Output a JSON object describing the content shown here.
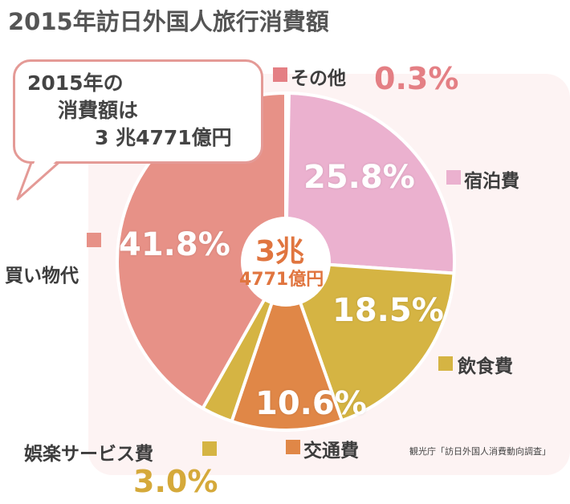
{
  "title": "2015年訪日外国人旅行消費額",
  "callout": {
    "line1": "2015年の",
    "line2": "消費額は",
    "line3": "3 兆4771億円"
  },
  "center": {
    "main": "3兆",
    "sub": "4771億円"
  },
  "source": "観光庁「訪日外国人消費動向調査」",
  "chart_data": {
    "type": "pie",
    "title": "2015年訪日外国人旅行消費額",
    "total": "3兆4771億円",
    "start_angle_deg": 0,
    "direction": "clockwise",
    "slices": [
      {
        "id": "other",
        "label": "その他",
        "value": 0.3,
        "display": "0.3%",
        "color": "#e47f84"
      },
      {
        "id": "lodging",
        "label": "宿泊費",
        "value": 25.8,
        "display": "25.8%",
        "color": "#ebb1cf"
      },
      {
        "id": "food",
        "label": "飲食費",
        "value": 18.5,
        "display": "18.5%",
        "color": "#d5b443"
      },
      {
        "id": "transport",
        "label": "交通費",
        "value": 10.6,
        "display": "10.6%",
        "color": "#e08747"
      },
      {
        "id": "entertainment",
        "label": "娯楽サービス費",
        "value": 3.0,
        "display": "3.0%",
        "color": "#d5b443"
      },
      {
        "id": "shopping",
        "label": "買い物代",
        "value": 41.8,
        "display": "41.8%",
        "color": "#e79187"
      }
    ]
  }
}
